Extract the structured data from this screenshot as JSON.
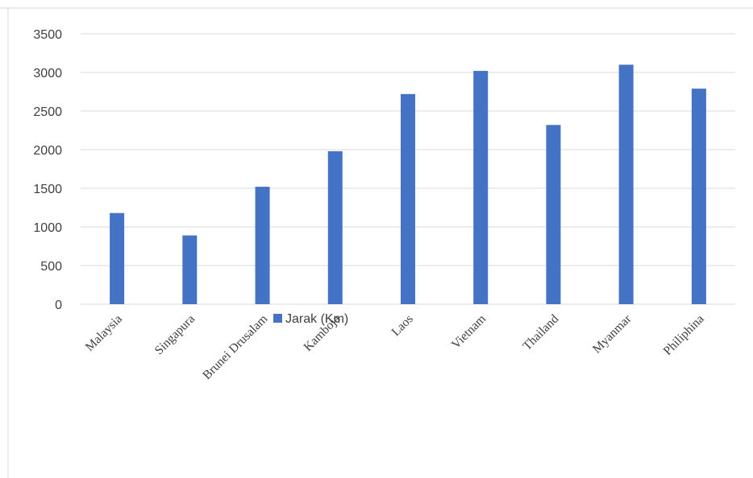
{
  "chart_data": {
    "type": "bar",
    "categories": [
      "Malaysia",
      "Singapura",
      "Brunei Drusalam",
      "Kamboja",
      "Laos",
      "Vietnam",
      "Thailand",
      "Myanmar",
      "Philiphina"
    ],
    "series": [
      {
        "name": "Jarak (Km)",
        "values": [
          1180,
          890,
          1520,
          1980,
          2720,
          3020,
          2320,
          3100,
          2790
        ],
        "color": "#4472c4"
      }
    ],
    "ylim": [
      0,
      3500
    ],
    "yticks": [
      0,
      500,
      1000,
      1500,
      2000,
      2500,
      3000,
      3500
    ],
    "grid": true,
    "legend_position": "bottom"
  }
}
